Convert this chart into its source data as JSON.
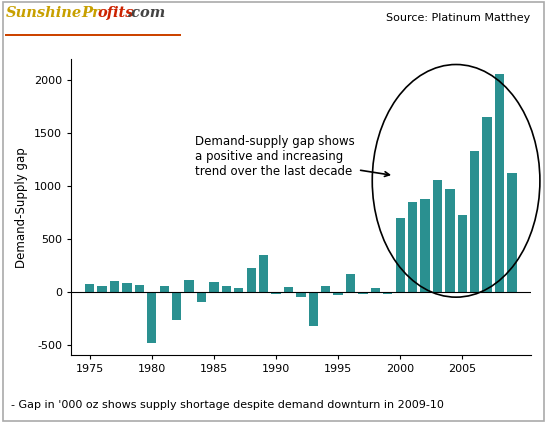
{
  "years": [
    1975,
    1976,
    1977,
    1978,
    1979,
    1980,
    1981,
    1982,
    1983,
    1984,
    1985,
    1986,
    1987,
    1988,
    1989,
    1990,
    1991,
    1992,
    1993,
    1994,
    1995,
    1996,
    1997,
    1998,
    1999,
    2000,
    2001,
    2002,
    2003,
    2004,
    2005,
    2006,
    2007,
    2008,
    2009
  ],
  "values": [
    70,
    55,
    100,
    80,
    65,
    -480,
    60,
    -270,
    110,
    -100,
    95,
    55,
    40,
    230,
    350,
    -20,
    45,
    -50,
    -320,
    55,
    -25,
    165,
    -20,
    40,
    -20,
    700,
    850,
    880,
    1060,
    975,
    725,
    1330,
    1655,
    2060,
    1120
  ],
  "bar_color": "#2a9090",
  "ylabel": "Demand-Supply gap",
  "annotation_text": "Demand-supply gap shows\na positive and increasing\ntrend over the last decade",
  "source_text": "Source: Platinum Matthey",
  "footer_text": "- Gap in '000 oz shows supply shortage despite demand downturn in 2009-10",
  "ylim": [
    -600,
    2200
  ],
  "yticks": [
    -500,
    0,
    500,
    1000,
    1500,
    2000
  ],
  "bg_color": "#ffffff",
  "xticks": [
    1975,
    1980,
    1985,
    1990,
    1995,
    2000,
    2005
  ],
  "xlim": [
    1973.5,
    2010.5
  ]
}
